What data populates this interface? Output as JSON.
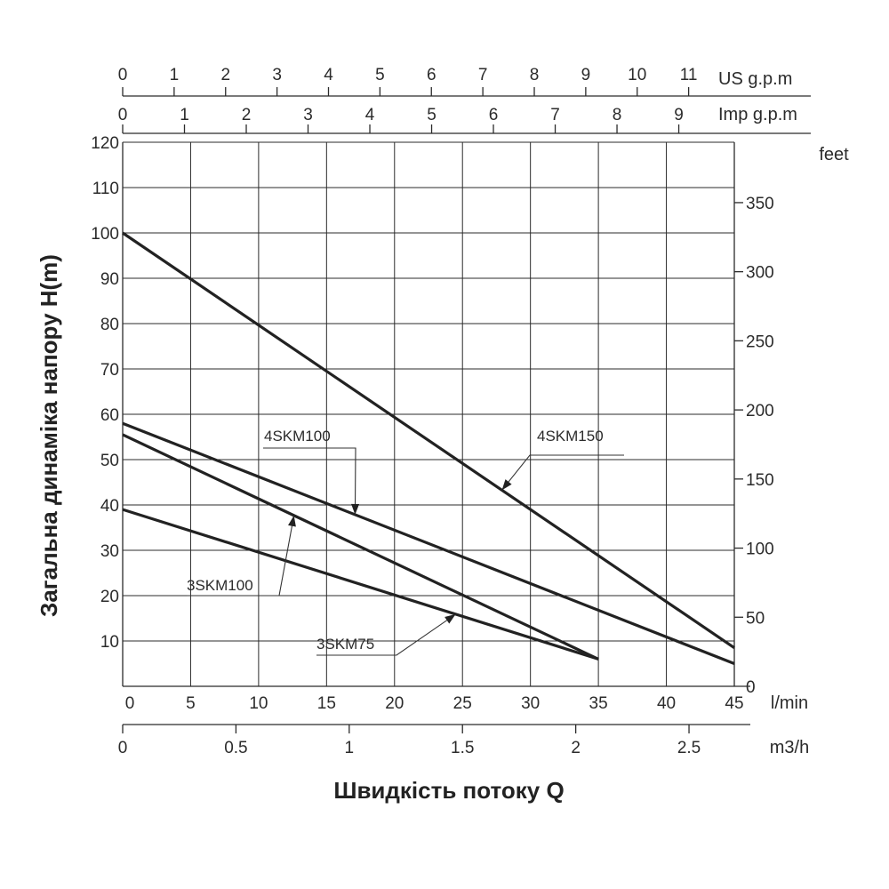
{
  "chart_data": {
    "type": "line",
    "ylabel": "Загальна динаміка напору H(m)",
    "xlabel": "Швидкість потоку Q",
    "x_unit": "l/min",
    "xlim": [
      0,
      45
    ],
    "x_ticks": [
      0,
      5,
      10,
      15,
      20,
      25,
      30,
      35,
      40,
      45
    ],
    "ylim": [
      0,
      120
    ],
    "y_ticks": [
      10,
      20,
      30,
      40,
      50,
      60,
      70,
      80,
      90,
      100,
      110,
      120
    ],
    "grid": true,
    "secondary_axes": {
      "m3h": {
        "unit": "m3/h",
        "ticks": [
          "0",
          "0.5",
          "1",
          "1.5",
          "2",
          "2.5"
        ],
        "values": [
          0,
          0.5,
          1,
          1.5,
          2,
          2.5
        ]
      },
      "us_gpm": {
        "unit": "US g.p.m",
        "ticks": [
          "0",
          "1",
          "2",
          "3",
          "4",
          "5",
          "6",
          "7",
          "8",
          "9",
          "10",
          "11"
        ],
        "values": [
          0,
          1,
          2,
          3,
          4,
          5,
          6,
          7,
          8,
          9,
          10,
          11
        ]
      },
      "imp_gpm": {
        "unit": "Imp g.p.m",
        "ticks": [
          "0",
          "1",
          "2",
          "3",
          "4",
          "5",
          "6",
          "7",
          "8",
          "9"
        ],
        "values": [
          0,
          1,
          2,
          3,
          4,
          5,
          6,
          7,
          8,
          9
        ]
      },
      "feet": {
        "unit": "feet",
        "ticks": [
          "0",
          "50",
          "100",
          "150",
          "200",
          "250",
          "300",
          "350"
        ],
        "values": [
          0,
          50,
          100,
          150,
          200,
          250,
          300,
          350
        ]
      }
    },
    "series": [
      {
        "name": "4SKM150",
        "x": [
          0,
          45
        ],
        "y": [
          100,
          8.5
        ],
        "label_anchor": [
          28,
          51
        ]
      },
      {
        "name": "4SKM100",
        "x": [
          0,
          45
        ],
        "y": [
          58,
          5
        ],
        "label_anchor": [
          10,
          53.5
        ]
      },
      {
        "name": "3SKM100",
        "x": [
          0,
          35
        ],
        "y": [
          55.5,
          6
        ],
        "label_anchor": [
          5,
          21
        ]
      },
      {
        "name": "3SKM75",
        "x": [
          0,
          35
        ],
        "y": [
          39,
          6
        ],
        "label_anchor": [
          14,
          7
        ]
      }
    ]
  }
}
